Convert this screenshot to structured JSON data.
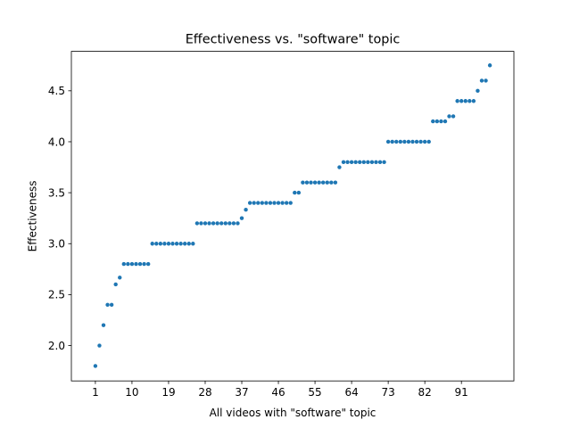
{
  "chart_data": {
    "type": "scatter",
    "title": "Effectiveness vs. \"software\" topic",
    "xlabel": "All videos with \"software\" topic",
    "ylabel": "Effectiveness",
    "xlim": [
      -4.9,
      103.9
    ],
    "ylim": [
      1.653,
      4.887
    ],
    "grid": false,
    "legend": "none",
    "marker_color": "#1f77b4",
    "x_ticks": [
      1,
      10,
      19,
      28,
      37,
      46,
      55,
      64,
      73,
      82,
      91
    ],
    "y_ticks": [
      2.0,
      2.5,
      3.0,
      3.5,
      4.0,
      4.5
    ],
    "x_tick_labels": [
      "1",
      "10",
      "19",
      "28",
      "37",
      "46",
      "55",
      "64",
      "73",
      "82",
      "91"
    ],
    "y_tick_labels": [
      "2.0",
      "2.5",
      "3.0",
      "3.5",
      "4.0",
      "4.5"
    ],
    "points": [
      [
        1,
        1.8
      ],
      [
        2,
        2.0
      ],
      [
        3,
        2.2
      ],
      [
        4,
        2.4
      ],
      [
        5,
        2.4
      ],
      [
        6,
        2.6
      ],
      [
        7,
        2.667
      ],
      [
        8,
        2.8
      ],
      [
        9,
        2.8
      ],
      [
        10,
        2.8
      ],
      [
        11,
        2.8
      ],
      [
        12,
        2.8
      ],
      [
        13,
        2.8
      ],
      [
        14,
        2.8
      ],
      [
        15,
        3.0
      ],
      [
        16,
        3.0
      ],
      [
        17,
        3.0
      ],
      [
        18,
        3.0
      ],
      [
        19,
        3.0
      ],
      [
        20,
        3.0
      ],
      [
        21,
        3.0
      ],
      [
        22,
        3.0
      ],
      [
        23,
        3.0
      ],
      [
        24,
        3.0
      ],
      [
        25,
        3.0
      ],
      [
        26,
        3.2
      ],
      [
        27,
        3.2
      ],
      [
        28,
        3.2
      ],
      [
        29,
        3.2
      ],
      [
        30,
        3.2
      ],
      [
        31,
        3.2
      ],
      [
        32,
        3.2
      ],
      [
        33,
        3.2
      ],
      [
        34,
        3.2
      ],
      [
        35,
        3.2
      ],
      [
        36,
        3.2
      ],
      [
        37,
        3.25
      ],
      [
        38,
        3.333
      ],
      [
        39,
        3.4
      ],
      [
        40,
        3.4
      ],
      [
        41,
        3.4
      ],
      [
        42,
        3.4
      ],
      [
        43,
        3.4
      ],
      [
        44,
        3.4
      ],
      [
        45,
        3.4
      ],
      [
        46,
        3.4
      ],
      [
        47,
        3.4
      ],
      [
        48,
        3.4
      ],
      [
        49,
        3.4
      ],
      [
        50,
        3.5
      ],
      [
        51,
        3.5
      ],
      [
        52,
        3.6
      ],
      [
        53,
        3.6
      ],
      [
        54,
        3.6
      ],
      [
        55,
        3.6
      ],
      [
        56,
        3.6
      ],
      [
        57,
        3.6
      ],
      [
        58,
        3.6
      ],
      [
        59,
        3.6
      ],
      [
        60,
        3.6
      ],
      [
        61,
        3.75
      ],
      [
        62,
        3.8
      ],
      [
        63,
        3.8
      ],
      [
        64,
        3.8
      ],
      [
        65,
        3.8
      ],
      [
        66,
        3.8
      ],
      [
        67,
        3.8
      ],
      [
        68,
        3.8
      ],
      [
        69,
        3.8
      ],
      [
        70,
        3.8
      ],
      [
        71,
        3.8
      ],
      [
        72,
        3.8
      ],
      [
        73,
        4.0
      ],
      [
        74,
        4.0
      ],
      [
        75,
        4.0
      ],
      [
        76,
        4.0
      ],
      [
        77,
        4.0
      ],
      [
        78,
        4.0
      ],
      [
        79,
        4.0
      ],
      [
        80,
        4.0
      ],
      [
        81,
        4.0
      ],
      [
        82,
        4.0
      ],
      [
        83,
        4.0
      ],
      [
        84,
        4.2
      ],
      [
        85,
        4.2
      ],
      [
        86,
        4.2
      ],
      [
        87,
        4.2
      ],
      [
        88,
        4.25
      ],
      [
        89,
        4.25
      ],
      [
        90,
        4.4
      ],
      [
        91,
        4.4
      ],
      [
        92,
        4.4
      ],
      [
        93,
        4.4
      ],
      [
        94,
        4.4
      ],
      [
        95,
        4.5
      ],
      [
        96,
        4.6
      ],
      [
        97,
        4.6
      ],
      [
        98,
        4.75
      ]
    ]
  }
}
